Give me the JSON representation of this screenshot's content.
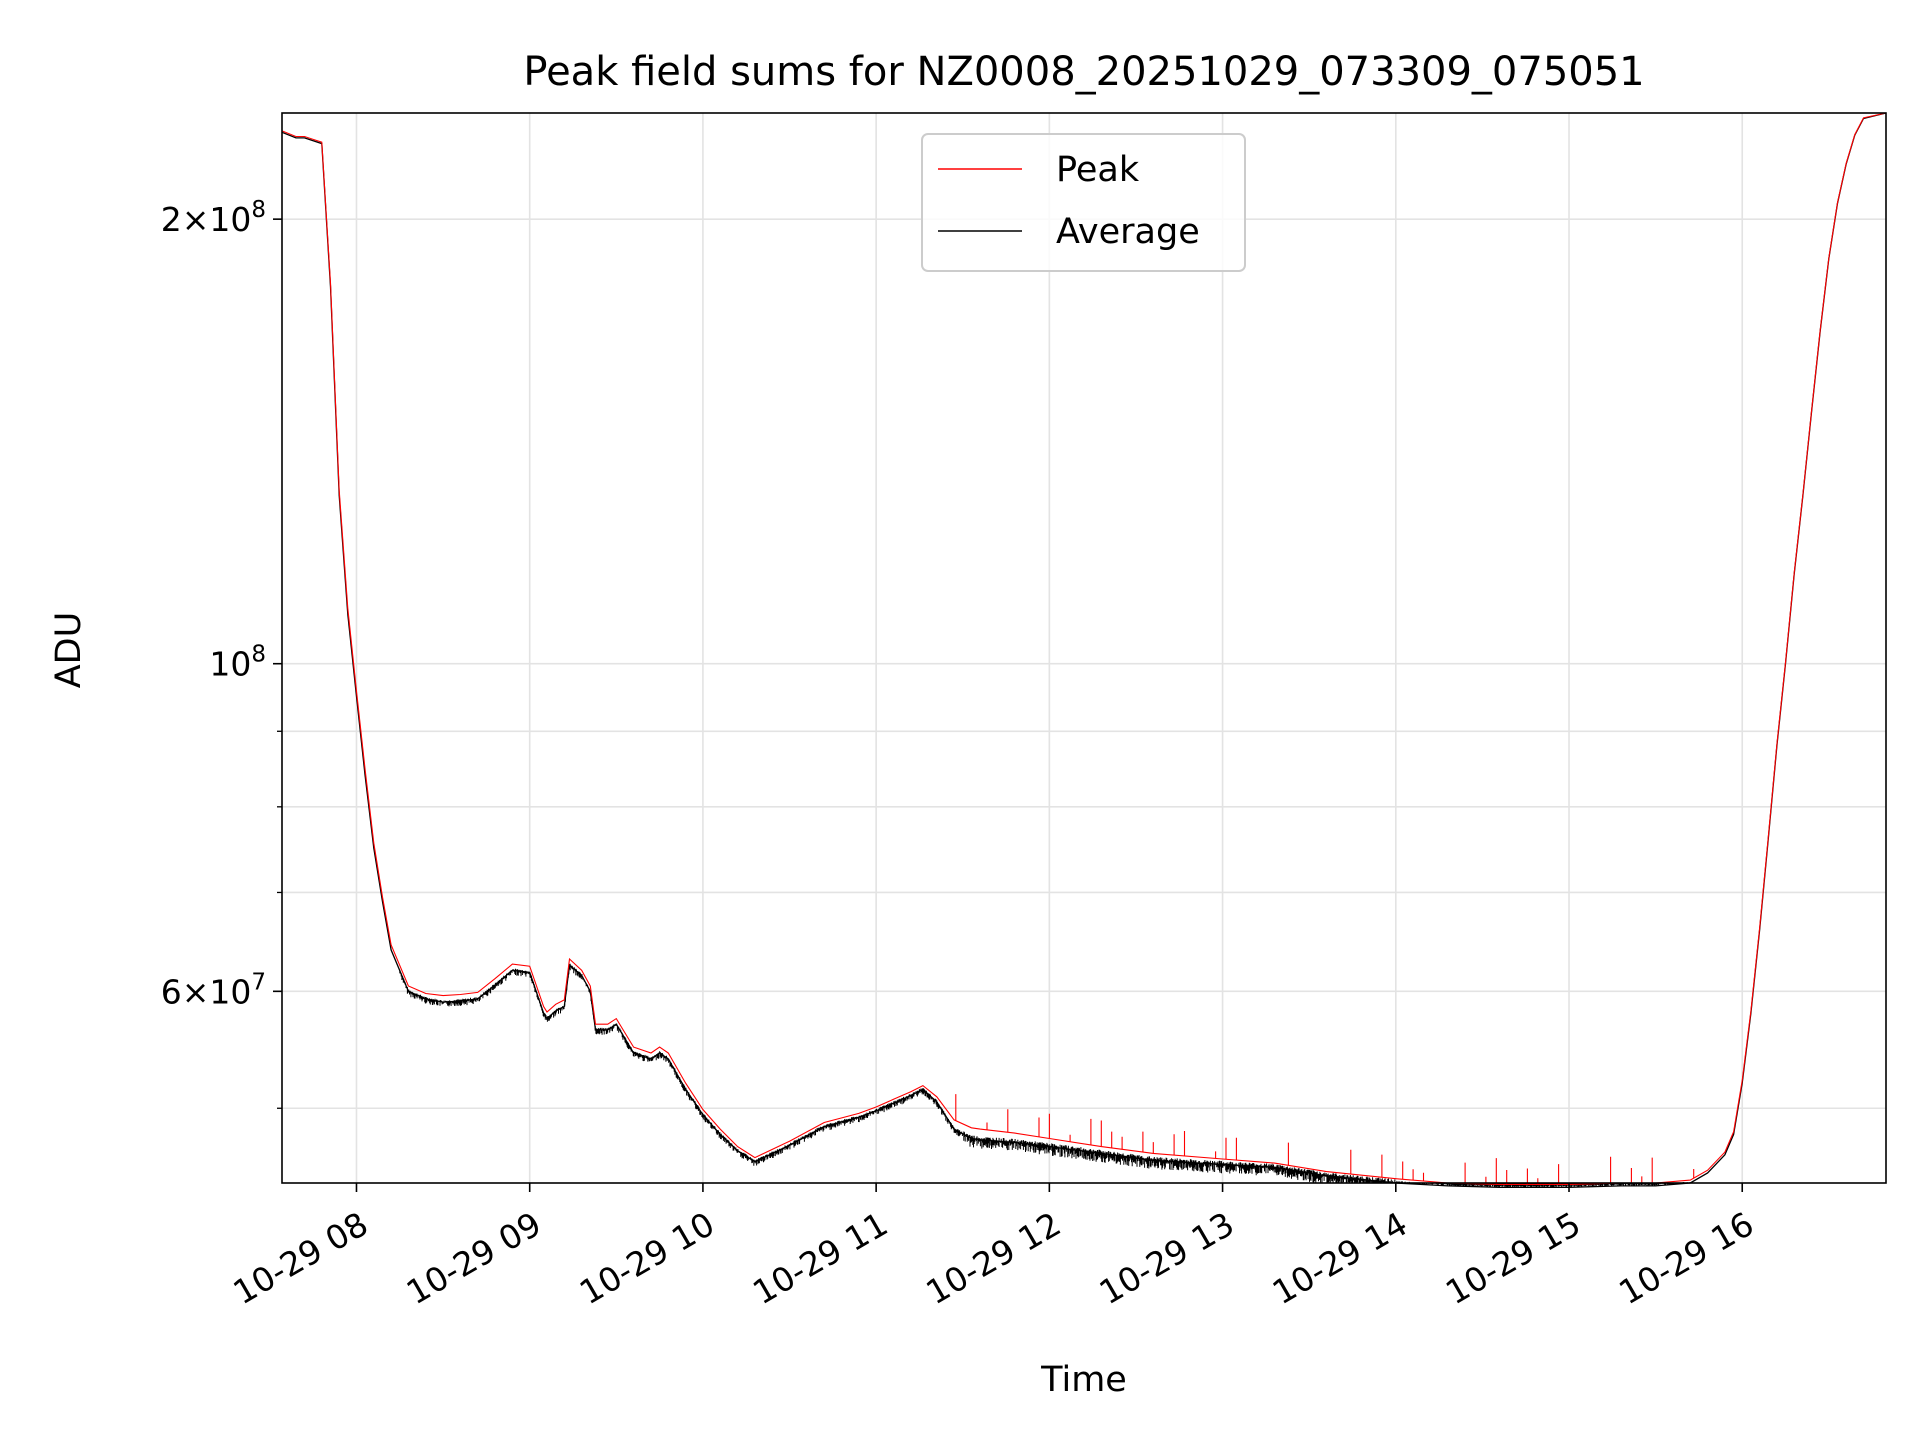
{
  "chart_data": {
    "type": "line",
    "title": "Peak field sums for NZ0008_20251029_073309_075051",
    "xlabel": "Time",
    "ylabel": "ADU",
    "yscale": "log",
    "xlim": [
      7.57,
      16.83
    ],
    "ylim": [
      44500000,
      236000000
    ],
    "x_ticks": [
      {
        "value": 8,
        "label": "10-29 08"
      },
      {
        "value": 9,
        "label": "10-29 09"
      },
      {
        "value": 10,
        "label": "10-29 10"
      },
      {
        "value": 11,
        "label": "10-29 11"
      },
      {
        "value": 12,
        "label": "10-29 12"
      },
      {
        "value": 13,
        "label": "10-29 13"
      },
      {
        "value": 14,
        "label": "10-29 14"
      },
      {
        "value": 15,
        "label": "10-29 15"
      },
      {
        "value": 16,
        "label": "10-29 16"
      }
    ],
    "y_major_ticks": [
      {
        "value": 200000000,
        "mant": "2",
        "exp": "8"
      },
      {
        "value": 100000000,
        "mant": "",
        "exp": "8"
      },
      {
        "value": 60000000,
        "mant": "6",
        "exp": "7"
      }
    ],
    "y_minor_ticks": [
      50000000,
      70000000,
      80000000,
      90000000
    ],
    "legend": {
      "location": "upper-center",
      "entries": [
        {
          "name": "Peak",
          "color": "#ff0000"
        },
        {
          "name": "Average",
          "color": "#000000"
        }
      ]
    },
    "series": [
      {
        "name": "Average",
        "color": "#000000",
        "x": [
          7.57,
          7.65,
          7.7,
          7.75,
          7.8,
          7.85,
          7.9,
          7.95,
          8.0,
          8.05,
          8.1,
          8.15,
          8.2,
          8.3,
          8.4,
          8.5,
          8.6,
          8.7,
          8.8,
          8.9,
          9.0,
          9.08,
          9.1,
          9.15,
          9.2,
          9.23,
          9.3,
          9.35,
          9.38,
          9.45,
          9.5,
          9.6,
          9.7,
          9.75,
          9.8,
          9.9,
          10.0,
          10.1,
          10.2,
          10.3,
          10.5,
          10.7,
          10.9,
          11.0,
          11.1,
          11.2,
          11.27,
          11.35,
          11.45,
          11.55,
          11.6,
          11.8,
          12.0,
          12.3,
          12.6,
          13.0,
          13.3,
          13.6,
          14.0,
          14.3,
          14.6,
          15.0,
          15.3,
          15.5,
          15.7,
          15.8,
          15.9,
          15.95,
          16.0,
          16.05,
          16.1,
          16.15,
          16.2,
          16.25,
          16.3,
          16.35,
          16.4,
          16.45,
          16.5,
          16.55,
          16.6,
          16.65,
          16.7,
          16.83
        ],
        "y": [
          229000000,
          227000000,
          227000000,
          226000000,
          225000000,
          180000000,
          130000000,
          108000000,
          95000000,
          84000000,
          75000000,
          69000000,
          64000000,
          60000000,
          59300000,
          59000000,
          59100000,
          59300000,
          60600000,
          62000000,
          61800000,
          58000000,
          57500000,
          58200000,
          58600000,
          62500000,
          61500000,
          60000000,
          56500000,
          56500000,
          57000000,
          54500000,
          54000000,
          54500000,
          54000000,
          51500000,
          49500000,
          48000000,
          46800000,
          46000000,
          47200000,
          48600000,
          49300000,
          49800000,
          50400000,
          51000000,
          51500000,
          50500000,
          48400000,
          47700000,
          47600000,
          47400000,
          47100000,
          46600000,
          46100000,
          45800000,
          45600000,
          45000000,
          44500000,
          44300000,
          44200000,
          44200000,
          44300000,
          44300000,
          44500000,
          45200000,
          46500000,
          48000000,
          52000000,
          58000000,
          66000000,
          76000000,
          88000000,
          100000000,
          115000000,
          130000000,
          148000000,
          168000000,
          188000000,
          205000000,
          218000000,
          228000000,
          234000000,
          236000000
        ]
      },
      {
        "name": "Peak",
        "color": "#ff0000",
        "x": [
          7.57,
          7.65,
          7.7,
          7.75,
          7.8,
          7.85,
          7.9,
          7.95,
          8.0,
          8.05,
          8.1,
          8.15,
          8.2,
          8.3,
          8.4,
          8.5,
          8.6,
          8.7,
          8.8,
          8.9,
          9.0,
          9.08,
          9.1,
          9.15,
          9.2,
          9.23,
          9.3,
          9.35,
          9.38,
          9.45,
          9.5,
          9.6,
          9.7,
          9.75,
          9.8,
          9.9,
          10.0,
          10.1,
          10.2,
          10.3,
          10.5,
          10.7,
          10.9,
          11.0,
          11.1,
          11.2,
          11.27,
          11.35,
          11.45,
          11.55,
          11.6,
          11.8,
          12.0,
          12.3,
          12.6,
          13.0,
          13.3,
          13.6,
          14.0,
          14.3,
          14.6,
          15.0,
          15.3,
          15.5,
          15.7,
          15.8,
          15.9,
          15.95,
          16.0,
          16.05,
          16.1,
          16.15,
          16.2,
          16.25,
          16.3,
          16.35,
          16.4,
          16.45,
          16.5,
          16.55,
          16.6,
          16.65,
          16.7,
          16.83
        ],
        "y": [
          229500000,
          227500000,
          227500000,
          226500000,
          225500000,
          181000000,
          131000000,
          109000000,
          95800000,
          84800000,
          75600000,
          69500000,
          64500000,
          60500000,
          59800000,
          59600000,
          59700000,
          59900000,
          61200000,
          62600000,
          62400000,
          58600000,
          58100000,
          58800000,
          59200000,
          63100000,
          62000000,
          60500000,
          57000000,
          57000000,
          57500000,
          55000000,
          54500000,
          55000000,
          54500000,
          52000000,
          49900000,
          48400000,
          47100000,
          46300000,
          47500000,
          48900000,
          49600000,
          50100000,
          50700000,
          51300000,
          51800000,
          50900000,
          49100000,
          48500000,
          48400000,
          48100000,
          47700000,
          47100000,
          46600000,
          46200000,
          45900000,
          45300000,
          44800000,
          44500000,
          44400000,
          44400000,
          44500000,
          44500000,
          44700000,
          45400000,
          46700000,
          48200000,
          52200000,
          58200000,
          66200000,
          76200000,
          88200000,
          100200000,
          115200000,
          130200000,
          148200000,
          168200000,
          188200000,
          205200000,
          218200000,
          228200000,
          234200000,
          236000000
        ]
      }
    ]
  }
}
